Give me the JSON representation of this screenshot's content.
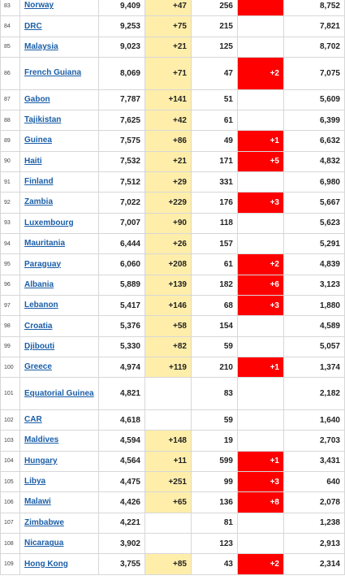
{
  "table": {
    "rows": [
      {
        "rank": "83",
        "country": "Norway",
        "total_cases": "9,409",
        "new_cases": "+47",
        "total_deaths": "256",
        "new_deaths": "",
        "new_deaths_red": true,
        "recovered": "8,752"
      },
      {
        "rank": "84",
        "country": "DRC",
        "total_cases": "9,253",
        "new_cases": "+75",
        "total_deaths": "215",
        "new_deaths": "",
        "new_deaths_red": false,
        "recovered": "7,821"
      },
      {
        "rank": "85",
        "country": "Malaysia",
        "total_cases": "9,023",
        "new_cases": "+21",
        "total_deaths": "125",
        "new_deaths": "",
        "new_deaths_red": false,
        "recovered": "8,702"
      },
      {
        "rank": "86",
        "country": "French Guiana",
        "total_cases": "8,069",
        "new_cases": "+71",
        "total_deaths": "47",
        "new_deaths": "+2",
        "new_deaths_red": true,
        "recovered": "7,075",
        "tall": true
      },
      {
        "rank": "87",
        "country": "Gabon",
        "total_cases": "7,787",
        "new_cases": "+141",
        "total_deaths": "51",
        "new_deaths": "",
        "new_deaths_red": false,
        "recovered": "5,609"
      },
      {
        "rank": "88",
        "country": "Tajikistan",
        "total_cases": "7,625",
        "new_cases": "+42",
        "total_deaths": "61",
        "new_deaths": "",
        "new_deaths_red": false,
        "recovered": "6,399"
      },
      {
        "rank": "89",
        "country": "Guinea",
        "total_cases": "7,575",
        "new_cases": "+86",
        "total_deaths": "49",
        "new_deaths": "+1",
        "new_deaths_red": true,
        "recovered": "6,632"
      },
      {
        "rank": "90",
        "country": "Haiti",
        "total_cases": "7,532",
        "new_cases": "+21",
        "total_deaths": "171",
        "new_deaths": "+5",
        "new_deaths_red": true,
        "recovered": "4,832"
      },
      {
        "rank": "91",
        "country": "Finland",
        "total_cases": "7,512",
        "new_cases": "+29",
        "total_deaths": "331",
        "new_deaths": "",
        "new_deaths_red": false,
        "recovered": "6,980"
      },
      {
        "rank": "92",
        "country": "Zambia",
        "total_cases": "7,022",
        "new_cases": "+229",
        "total_deaths": "176",
        "new_deaths": "+3",
        "new_deaths_red": true,
        "recovered": "5,667"
      },
      {
        "rank": "93",
        "country": "Luxembourg",
        "total_cases": "7,007",
        "new_cases": "+90",
        "total_deaths": "118",
        "new_deaths": "",
        "new_deaths_red": false,
        "recovered": "5,623"
      },
      {
        "rank": "94",
        "country": "Mauritania",
        "total_cases": "6,444",
        "new_cases": "+26",
        "total_deaths": "157",
        "new_deaths": "",
        "new_deaths_red": false,
        "recovered": "5,291"
      },
      {
        "rank": "95",
        "country": "Paraguay",
        "total_cases": "6,060",
        "new_cases": "+208",
        "total_deaths": "61",
        "new_deaths": "+2",
        "new_deaths_red": true,
        "recovered": "4,839"
      },
      {
        "rank": "96",
        "country": "Albania",
        "total_cases": "5,889",
        "new_cases": "+139",
        "total_deaths": "182",
        "new_deaths": "+6",
        "new_deaths_red": true,
        "recovered": "3,123"
      },
      {
        "rank": "97",
        "country": "Lebanon",
        "total_cases": "5,417",
        "new_cases": "+146",
        "total_deaths": "68",
        "new_deaths": "+3",
        "new_deaths_red": true,
        "recovered": "1,880"
      },
      {
        "rank": "98",
        "country": "Croatia",
        "total_cases": "5,376",
        "new_cases": "+58",
        "total_deaths": "154",
        "new_deaths": "",
        "new_deaths_red": false,
        "recovered": "4,589"
      },
      {
        "rank": "99",
        "country": "Djibouti",
        "total_cases": "5,330",
        "new_cases": "+82",
        "total_deaths": "59",
        "new_deaths": "",
        "new_deaths_red": false,
        "recovered": "5,057"
      },
      {
        "rank": "100",
        "country": "Greece",
        "total_cases": "4,974",
        "new_cases": "+119",
        "total_deaths": "210",
        "new_deaths": "+1",
        "new_deaths_red": true,
        "recovered": "1,374"
      },
      {
        "rank": "101",
        "country": "Equatorial Guinea",
        "total_cases": "4,821",
        "new_cases": "",
        "total_deaths": "83",
        "new_deaths": "",
        "new_deaths_red": false,
        "recovered": "2,182",
        "tall": true
      },
      {
        "rank": "102",
        "country": "CAR",
        "total_cases": "4,618",
        "new_cases": "",
        "total_deaths": "59",
        "new_deaths": "",
        "new_deaths_red": false,
        "recovered": "1,640"
      },
      {
        "rank": "103",
        "country": "Maldives",
        "total_cases": "4,594",
        "new_cases": "+148",
        "total_deaths": "19",
        "new_deaths": "",
        "new_deaths_red": false,
        "recovered": "2,703"
      },
      {
        "rank": "104",
        "country": "Hungary",
        "total_cases": "4,564",
        "new_cases": "+11",
        "total_deaths": "599",
        "new_deaths": "+1",
        "new_deaths_red": true,
        "recovered": "3,431"
      },
      {
        "rank": "105",
        "country": "Libya",
        "total_cases": "4,475",
        "new_cases": "+251",
        "total_deaths": "99",
        "new_deaths": "+3",
        "new_deaths_red": true,
        "recovered": "640"
      },
      {
        "rank": "106",
        "country": "Malawi",
        "total_cases": "4,426",
        "new_cases": "+65",
        "total_deaths": "136",
        "new_deaths": "+8",
        "new_deaths_red": true,
        "recovered": "2,078"
      },
      {
        "rank": "107",
        "country": "Zimbabwe",
        "total_cases": "4,221",
        "new_cases": "",
        "total_deaths": "81",
        "new_deaths": "",
        "new_deaths_red": false,
        "recovered": "1,238"
      },
      {
        "rank": "108",
        "country": "Nicaragua",
        "total_cases": "3,902",
        "new_cases": "",
        "total_deaths": "123",
        "new_deaths": "",
        "new_deaths_red": false,
        "recovered": "2,913"
      },
      {
        "rank": "109",
        "country": "Hong Kong",
        "total_cases": "3,755",
        "new_cases": "+85",
        "total_deaths": "43",
        "new_deaths": "+2",
        "new_deaths_red": true,
        "recovered": "2,314"
      }
    ]
  },
  "colors": {
    "new_cases_highlight": "#ffeeaa",
    "new_deaths_highlight": "#ff0000",
    "link": "#1a5ea8"
  }
}
